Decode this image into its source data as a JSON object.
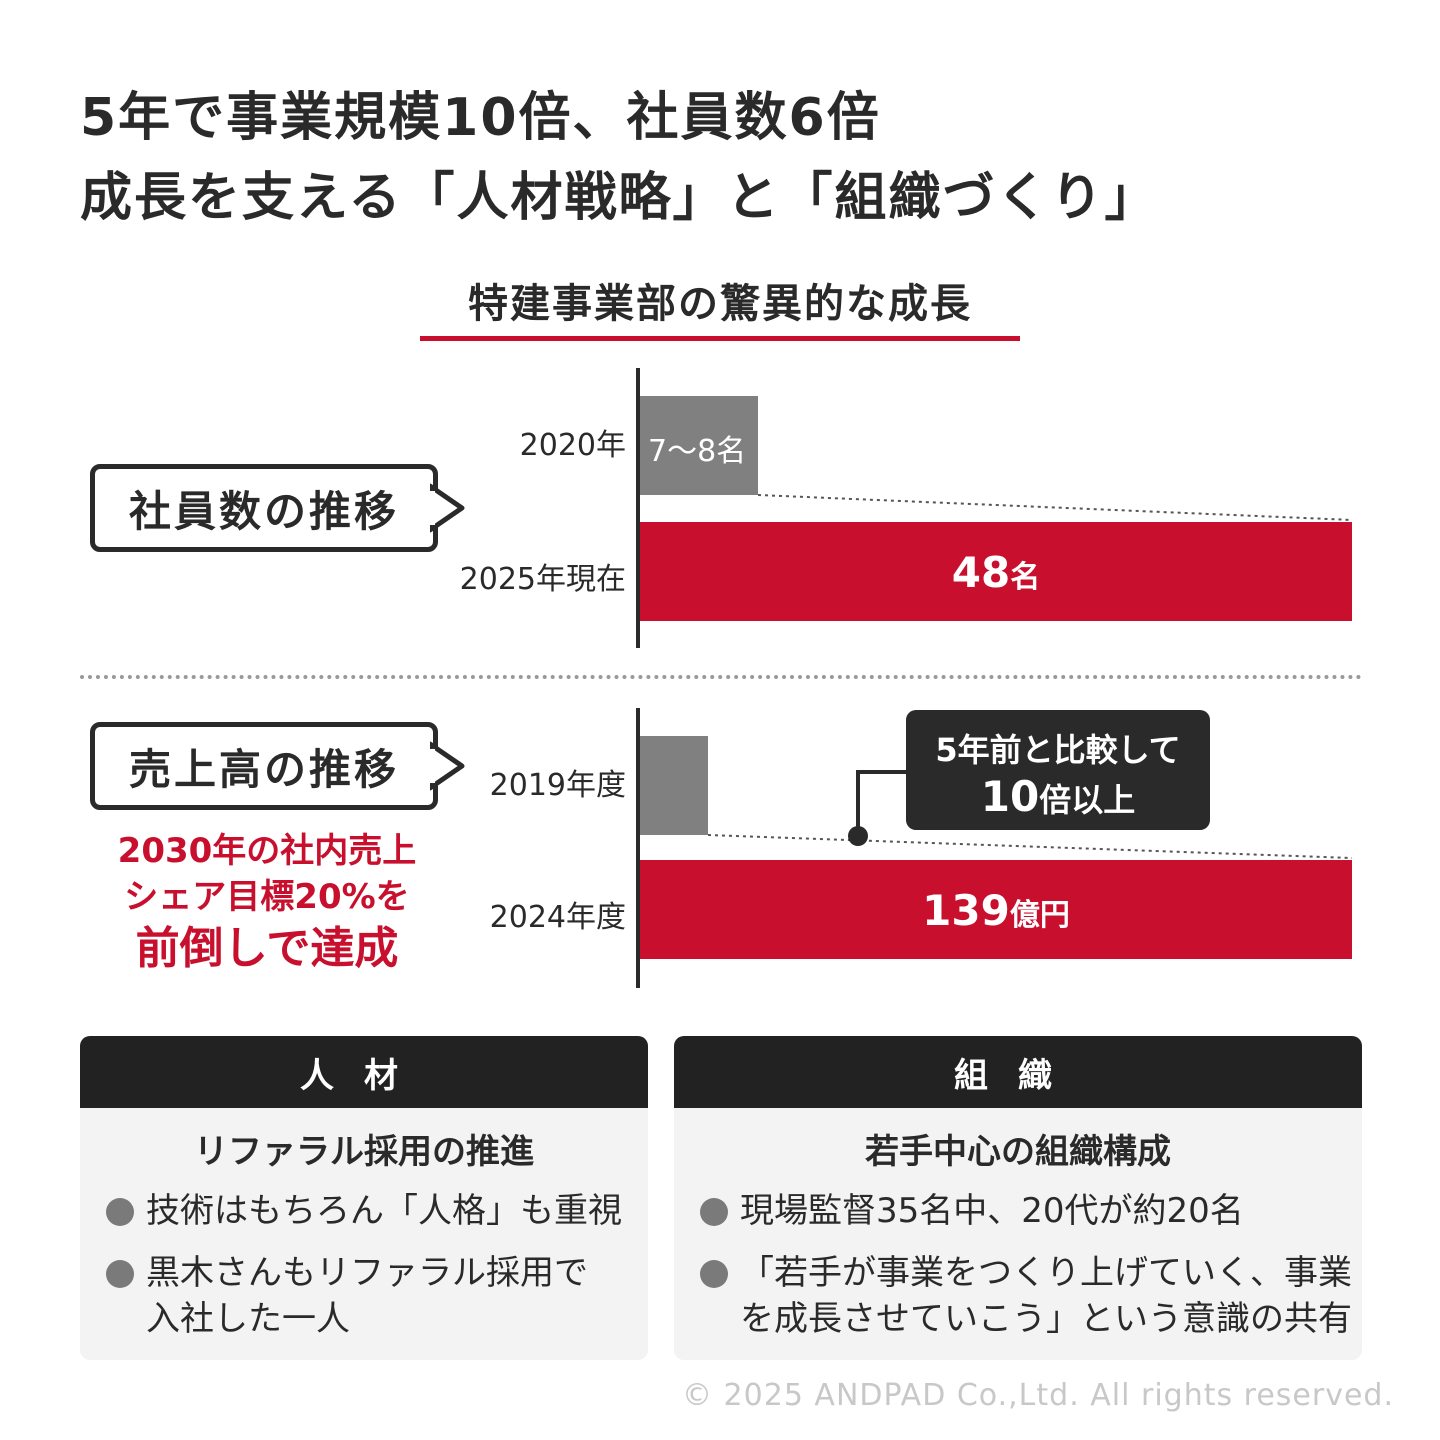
{
  "title": {
    "line1": "5年で事業規模10倍、社員数6倍",
    "line2": "成長を支える「人材戦略」と「組織づくり」"
  },
  "subtitle": "特建事業部の驚異的な成長",
  "employees": {
    "tag": "社員数の推移",
    "rows": [
      {
        "label": "2020年",
        "value_text": "7〜8名"
      },
      {
        "label": "2025年現在",
        "value_num": "48",
        "value_unit": "名"
      }
    ]
  },
  "sales": {
    "tag": "売上高の推移",
    "note_line1": "2030年の社内売上",
    "note_line2": "シェア目標20%を",
    "note_line3": "前倒しで達成",
    "rows": [
      {
        "label": "2019年度"
      },
      {
        "label": "2024年度",
        "value_num": "139",
        "value_unit": "億円"
      }
    ],
    "callout_line1": "5年前と比較して",
    "callout_num": "10",
    "callout_rest": "倍以上"
  },
  "chart_data": [
    {
      "type": "bar",
      "categories": [
        "2020年",
        "2025年現在"
      ],
      "values": [
        7.5,
        48
      ],
      "title": "社員数の推移",
      "data_labels": [
        "7〜8名",
        "48名"
      ],
      "colors": [
        "#808080",
        "#c8102e"
      ]
    },
    {
      "type": "bar",
      "categories": [
        "2019年度",
        "2024年度"
      ],
      "values": [
        13,
        139
      ],
      "title": "売上高の推移",
      "data_labels": [
        "",
        "139億円"
      ],
      "annotation": "5年前と比較して 10倍以上",
      "colors": [
        "#808080",
        "#c8102e"
      ]
    }
  ],
  "panels": [
    {
      "head": "人材",
      "sub": "リファラル採用の推進",
      "bullets": [
        {
          "l1": "技術はもちろん「人格」も重視",
          "l2": ""
        },
        {
          "l1": "黒木さんもリファラル採用で",
          "l2": "入社した一人"
        }
      ]
    },
    {
      "head": "組織",
      "sub": "若手中心の組織構成",
      "bullets": [
        {
          "l1": "現場監督35名中、20代が約20名",
          "l2": ""
        },
        {
          "l1": "「若手が事業をつくり上げていく、事業",
          "l2": "を成長させていこう」という意識の共有"
        }
      ]
    }
  ],
  "copyright": "© 2025 ANDPAD Co.,Ltd. All rights reserved.",
  "colors": {
    "accent": "#c8102e",
    "dark": "#2a2a2a",
    "grey_bar": "#808080"
  }
}
